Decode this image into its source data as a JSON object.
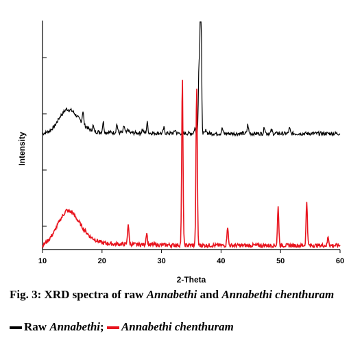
{
  "chart_data": {
    "type": "line",
    "xlabel": "2-Theta",
    "ylabel": "Intensity",
    "xlim": [
      10,
      60
    ],
    "x_ticks": [
      "10",
      "20",
      "30",
      "40",
      "50",
      "60"
    ],
    "series": [
      {
        "name": "Raw Annabethi",
        "color": "#000000",
        "baseline": 10,
        "points": [
          [
            10,
            10
          ],
          [
            11,
            11
          ],
          [
            12,
            14
          ],
          [
            13,
            20
          ],
          [
            14,
            24
          ],
          [
            15,
            23
          ],
          [
            16,
            19
          ],
          [
            17,
            15
          ],
          [
            18,
            12
          ],
          [
            19,
            11
          ],
          [
            22,
            10.5
          ],
          [
            30,
            10.2
          ],
          [
            40,
            10
          ],
          [
            50,
            10
          ],
          [
            60,
            10
          ]
        ],
        "peaks": [
          [
            16.8,
            17
          ],
          [
            18.5,
            13
          ],
          [
            20.2,
            16
          ],
          [
            22.5,
            15
          ],
          [
            23.7,
            14
          ],
          [
            24.4,
            12
          ],
          [
            26.8,
            12
          ],
          [
            27.6,
            16
          ],
          [
            30.4,
            13
          ],
          [
            32.3,
            12
          ],
          [
            35.6,
            13
          ],
          [
            36.3,
            50
          ],
          [
            36.6,
            108
          ],
          [
            37.5,
            12
          ],
          [
            40.2,
            13
          ],
          [
            44.5,
            15
          ],
          [
            47.3,
            14
          ],
          [
            48.5,
            12
          ],
          [
            51.5,
            13
          ]
        ]
      },
      {
        "name": "Annabethi chenthuram",
        "color": "#e8141e",
        "baseline": 0,
        "points": [
          [
            10,
            0
          ],
          [
            11,
            3
          ],
          [
            12,
            8
          ],
          [
            13,
            15
          ],
          [
            14,
            20
          ],
          [
            15,
            19
          ],
          [
            16,
            14
          ],
          [
            17,
            9
          ],
          [
            18,
            5
          ],
          [
            19,
            3
          ],
          [
            20,
            1.5
          ],
          [
            22,
            0.8
          ],
          [
            30,
            0.3
          ],
          [
            40,
            0
          ],
          [
            50,
            0
          ],
          [
            60,
            0
          ]
        ],
        "peaks": [
          [
            24.4,
            12
          ],
          [
            27.5,
            7
          ],
          [
            33.5,
            95
          ],
          [
            35.9,
            90
          ],
          [
            41.1,
            11
          ],
          [
            49.6,
            22
          ],
          [
            54.4,
            25
          ],
          [
            58.0,
            5
          ]
        ]
      }
    ]
  },
  "caption": {
    "prefix": "Fig. 3: XRD spectra of raw",
    "name1": "Annabethi",
    "and": "and",
    "name2": "Annabethi chenthuram"
  },
  "legend": {
    "item1_prefix": "Raw",
    "item1_name": "Annabethi",
    "separator": ";",
    "item2_name": "Annabethi chenthuram"
  }
}
